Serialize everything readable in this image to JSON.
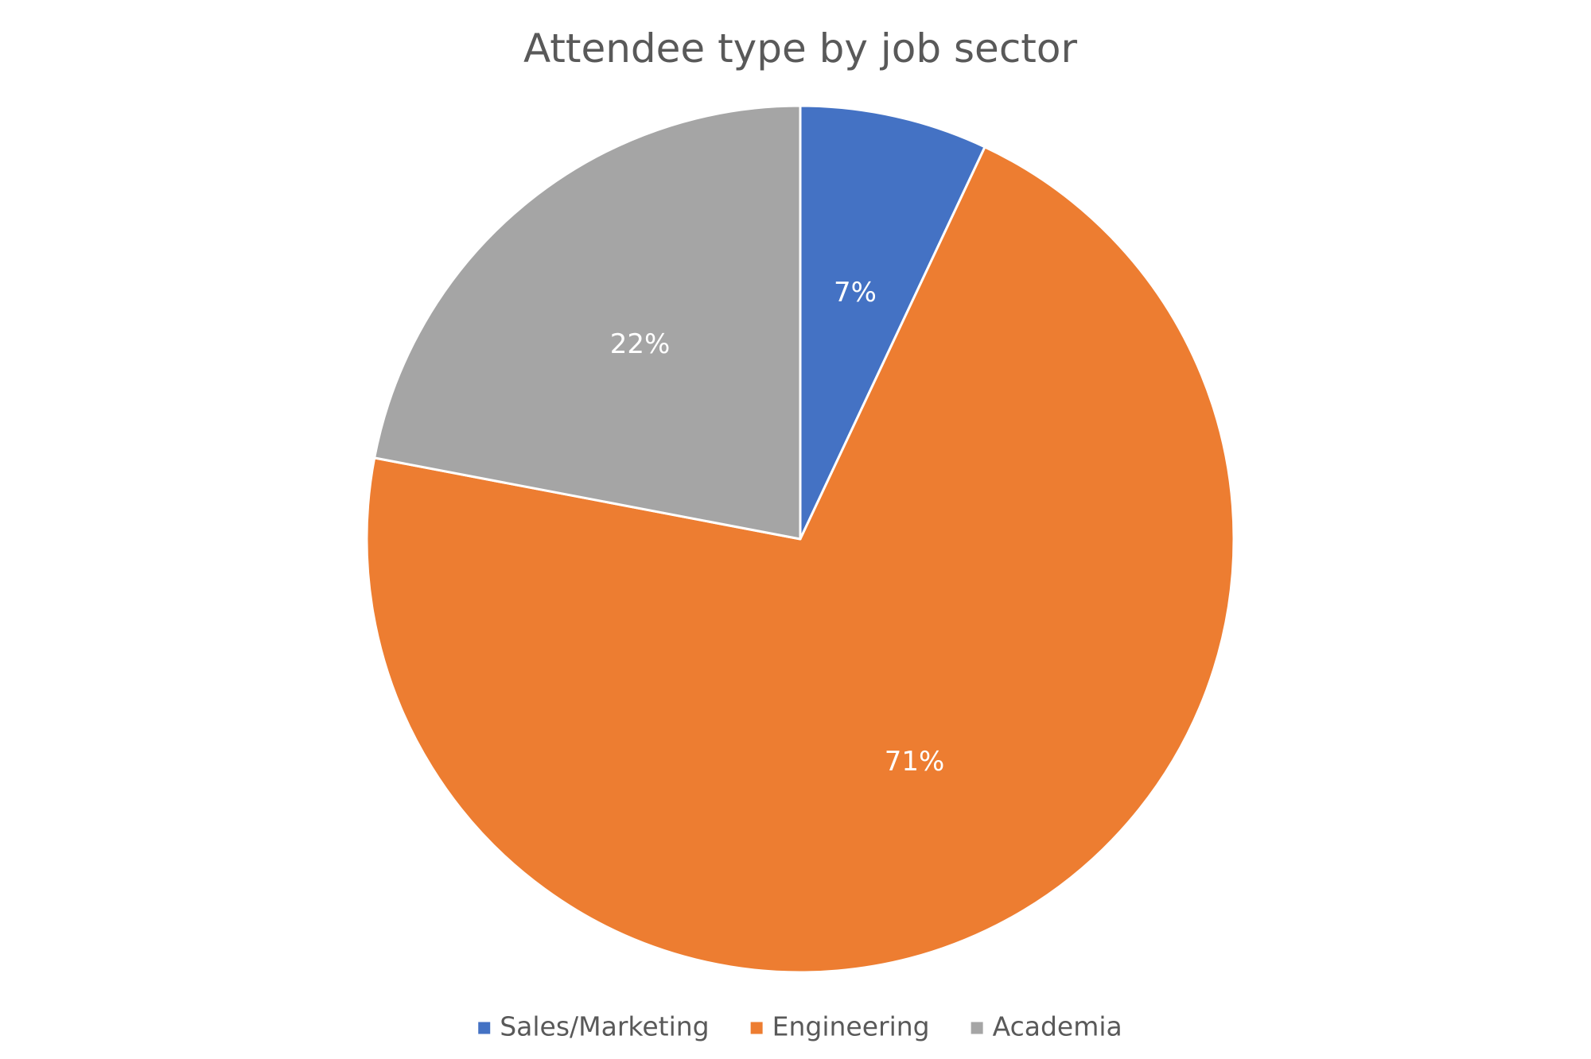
{
  "chart_data": {
    "type": "pie",
    "title": "Attendee type by job sector",
    "categories": [
      "Sales/Marketing",
      "Engineering",
      "Academia"
    ],
    "values": [
      7,
      71,
      22
    ],
    "labels": [
      "7%",
      "71%",
      "22%"
    ],
    "colors": [
      "#4472C4",
      "#ED7D31",
      "#A5A5A5"
    ],
    "start_angle": "12 o'clock",
    "direction": "clockwise",
    "legend": "bottom"
  }
}
